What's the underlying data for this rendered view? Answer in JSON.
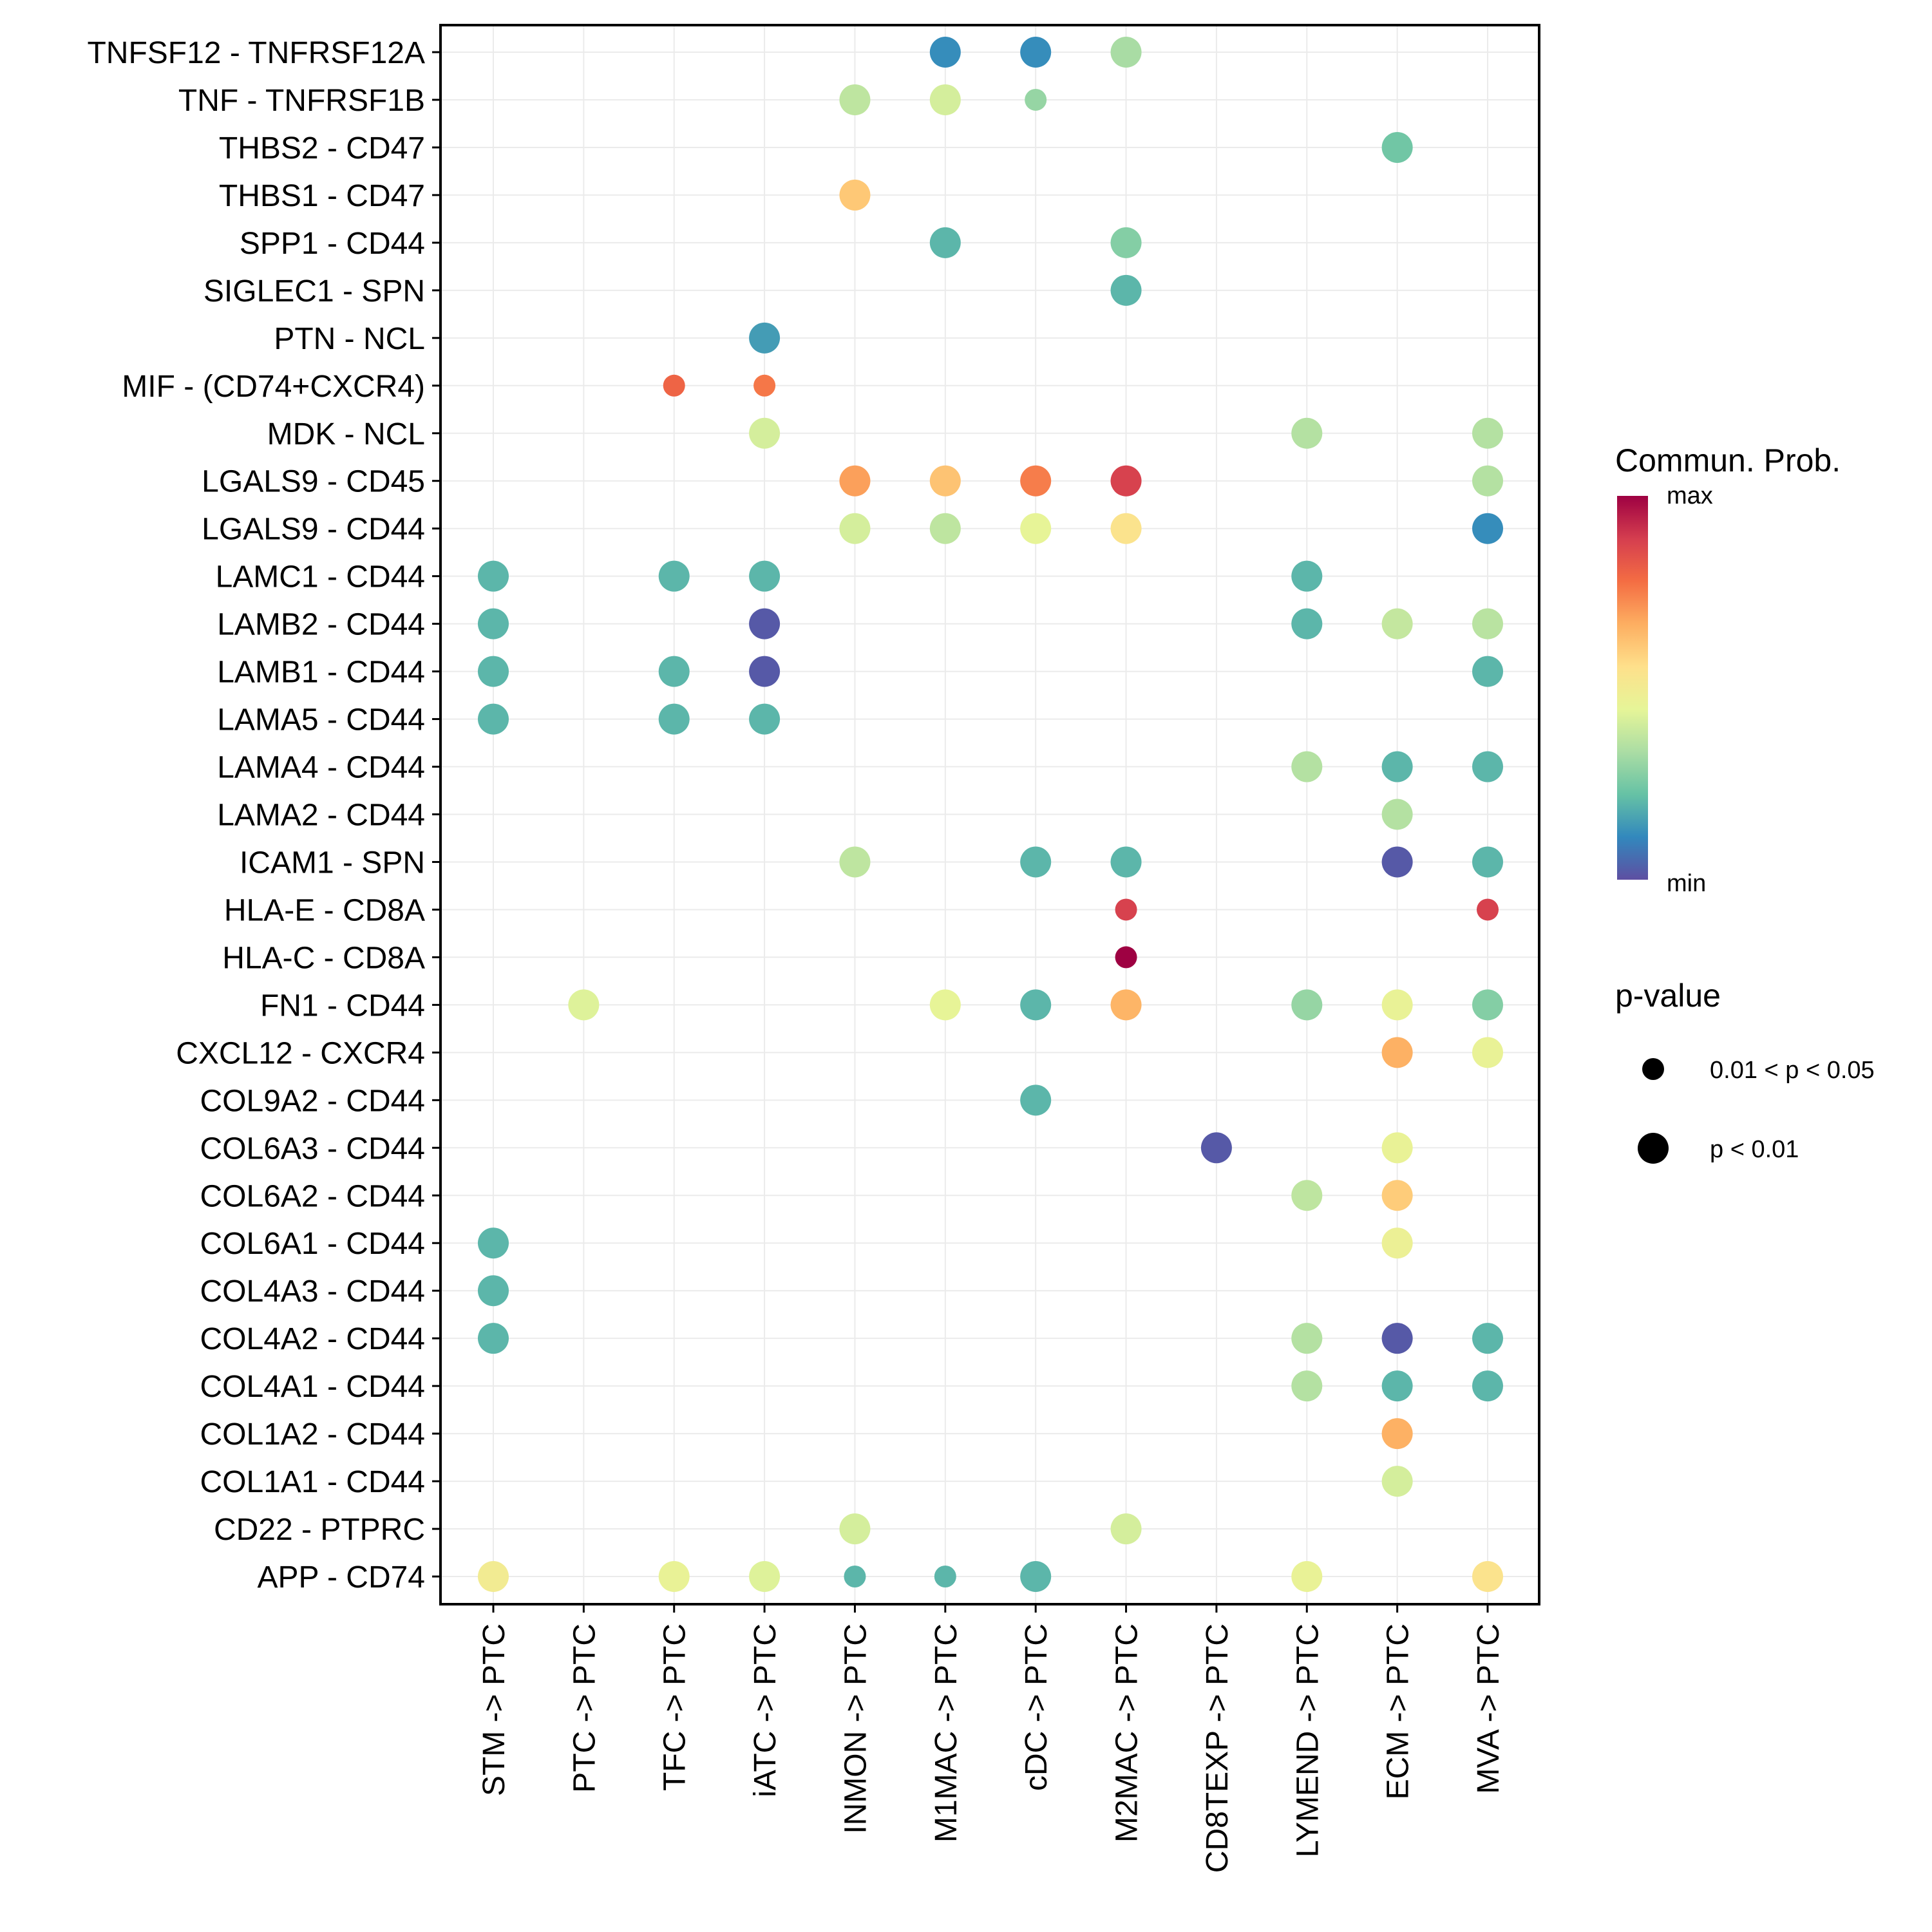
{
  "chart_data": {
    "type": "scatter",
    "subtype": "dot-plot",
    "title": "",
    "xlabel": "",
    "ylabel": "",
    "grid": true,
    "legend_position": "right",
    "x_categories": [
      "STM -> PTC",
      "PTC -> PTC",
      "TFC -> PTC",
      "iATC -> PTC",
      "INMON -> PTC",
      "M1MAC -> PTC",
      "cDC -> PTC",
      "M2MAC -> PTC",
      "CD8TEXP -> PTC",
      "LYMEND -> PTC",
      "ECM -> PTC",
      "MVA -> PTC"
    ],
    "y_categories": [
      "TNFSF12 - TNFRSF12A",
      "TNF - TNFRSF1B",
      "THBS2 - CD47",
      "THBS1 - CD47",
      "SPP1 - CD44",
      "SIGLEC1 - SPN",
      "PTN - NCL",
      "MIF - (CD74+CXCR4)",
      "MDK - NCL",
      "LGALS9 - CD45",
      "LGALS9 - CD44",
      "LAMC1 - CD44",
      "LAMB2 - CD44",
      "LAMB1 - CD44",
      "LAMA5 - CD44",
      "LAMA4 - CD44",
      "LAMA2 - CD44",
      "ICAM1 - SPN",
      "HLA-E - CD8A",
      "HLA-C - CD8A",
      "FN1 - CD44",
      "CXCL12 - CXCR4",
      "COL9A2 - CD44",
      "COL6A3 - CD44",
      "COL6A2 - CD44",
      "COL6A1 - CD44",
      "COL4A3 - CD44",
      "COL4A2 - CD44",
      "COL4A1 - CD44",
      "COL1A2 - CD44",
      "COL1A1 - CD44",
      "CD22 - PTPRC",
      "APP - CD74"
    ],
    "color_legend": {
      "title": "Commun. Prob.",
      "max_label": "max",
      "min_label": "min",
      "scale": [
        "#5E4FA2",
        "#3288BD",
        "#66C2A5",
        "#ABDDA4",
        "#E6F598",
        "#FEE08B",
        "#FDAE61",
        "#F46D43",
        "#D53E4F",
        "#9E0142"
      ]
    },
    "size_legend": {
      "title": "p-value",
      "items": [
        {
          "label": "0.01 < p < 0.05",
          "level": "small"
        },
        {
          "label": "p < 0.01",
          "level": "large"
        }
      ]
    },
    "points": [
      {
        "y": "TNFSF12 - TNFRSF12A",
        "x": "M1MAC -> PTC",
        "prob": 0.12,
        "p": "large"
      },
      {
        "y": "TNFSF12 - TNFRSF12A",
        "x": "cDC -> PTC",
        "prob": 0.12,
        "p": "large"
      },
      {
        "y": "TNFSF12 - TNFRSF12A",
        "x": "M2MAC -> PTC",
        "prob": 0.33,
        "p": "large"
      },
      {
        "y": "TNF - TNFRSF1B",
        "x": "INMON -> PTC",
        "prob": 0.37,
        "p": "large"
      },
      {
        "y": "TNF - TNFRSF1B",
        "x": "M1MAC -> PTC",
        "prob": 0.41,
        "p": "large"
      },
      {
        "y": "TNF - TNFRSF1B",
        "x": "cDC -> PTC",
        "prob": 0.3,
        "p": "small"
      },
      {
        "y": "THBS2 - CD47",
        "x": "ECM -> PTC",
        "prob": 0.24,
        "p": "large"
      },
      {
        "y": "THBS1 - CD47",
        "x": "INMON -> PTC",
        "prob": 0.61,
        "p": "large"
      },
      {
        "y": "SPP1 - CD44",
        "x": "M1MAC -> PTC",
        "prob": 0.2,
        "p": "large"
      },
      {
        "y": "SPP1 - CD44",
        "x": "M2MAC -> PTC",
        "prob": 0.27,
        "p": "large"
      },
      {
        "y": "SIGLEC1 - SPN",
        "x": "M2MAC -> PTC",
        "prob": 0.2,
        "p": "large"
      },
      {
        "y": "PTN - NCL",
        "x": "iATC -> PTC",
        "prob": 0.15,
        "p": "large"
      },
      {
        "y": "MIF - (CD74+CXCR4)",
        "x": "TFC -> PTC",
        "prob": 0.8,
        "p": "small"
      },
      {
        "y": "MIF - (CD74+CXCR4)",
        "x": "iATC -> PTC",
        "prob": 0.76,
        "p": "small"
      },
      {
        "y": "MDK - NCL",
        "x": "iATC -> PTC",
        "prob": 0.41,
        "p": "large"
      },
      {
        "y": "MDK - NCL",
        "x": "LYMEND -> PTC",
        "prob": 0.35,
        "p": "large"
      },
      {
        "y": "MDK - NCL",
        "x": "MVA -> PTC",
        "prob": 0.35,
        "p": "large"
      },
      {
        "y": "LGALS9 - CD45",
        "x": "INMON -> PTC",
        "prob": 0.69,
        "p": "large"
      },
      {
        "y": "LGALS9 - CD45",
        "x": "M1MAC -> PTC",
        "prob": 0.62,
        "p": "large"
      },
      {
        "y": "LGALS9 - CD45",
        "x": "cDC -> PTC",
        "prob": 0.75,
        "p": "large"
      },
      {
        "y": "LGALS9 - CD45",
        "x": "M2MAC -> PTC",
        "prob": 0.88,
        "p": "large"
      },
      {
        "y": "LGALS9 - CD45",
        "x": "MVA -> PTC",
        "prob": 0.35,
        "p": "large"
      },
      {
        "y": "LGALS9 - CD44",
        "x": "INMON -> PTC",
        "prob": 0.41,
        "p": "large"
      },
      {
        "y": "LGALS9 - CD44",
        "x": "M1MAC -> PTC",
        "prob": 0.37,
        "p": "large"
      },
      {
        "y": "LGALS9 - CD44",
        "x": "cDC -> PTC",
        "prob": 0.45,
        "p": "large"
      },
      {
        "y": "LGALS9 - CD44",
        "x": "M2MAC -> PTC",
        "prob": 0.54,
        "p": "large"
      },
      {
        "y": "LGALS9 - CD44",
        "x": "MVA -> PTC",
        "prob": 0.12,
        "p": "large"
      },
      {
        "y": "LAMC1 - CD44",
        "x": "STM -> PTC",
        "prob": 0.2,
        "p": "large"
      },
      {
        "y": "LAMC1 - CD44",
        "x": "TFC -> PTC",
        "prob": 0.2,
        "p": "large"
      },
      {
        "y": "LAMC1 - CD44",
        "x": "iATC -> PTC",
        "prob": 0.2,
        "p": "large"
      },
      {
        "y": "LAMC1 - CD44",
        "x": "LYMEND -> PTC",
        "prob": 0.2,
        "p": "large"
      },
      {
        "y": "LAMB2 - CD44",
        "x": "STM -> PTC",
        "prob": 0.2,
        "p": "large"
      },
      {
        "y": "LAMB2 - CD44",
        "x": "iATC -> PTC",
        "prob": 0.02,
        "p": "large"
      },
      {
        "y": "LAMB2 - CD44",
        "x": "LYMEND -> PTC",
        "prob": 0.2,
        "p": "large"
      },
      {
        "y": "LAMB2 - CD44",
        "x": "ECM -> PTC",
        "prob": 0.38,
        "p": "large"
      },
      {
        "y": "LAMB2 - CD44",
        "x": "MVA -> PTC",
        "prob": 0.36,
        "p": "large"
      },
      {
        "y": "LAMB1 - CD44",
        "x": "STM -> PTC",
        "prob": 0.2,
        "p": "large"
      },
      {
        "y": "LAMB1 - CD44",
        "x": "TFC -> PTC",
        "prob": 0.2,
        "p": "large"
      },
      {
        "y": "LAMB1 - CD44",
        "x": "iATC -> PTC",
        "prob": 0.02,
        "p": "large"
      },
      {
        "y": "LAMB1 - CD44",
        "x": "MVA -> PTC",
        "prob": 0.2,
        "p": "large"
      },
      {
        "y": "LAMA5 - CD44",
        "x": "STM -> PTC",
        "prob": 0.2,
        "p": "large"
      },
      {
        "y": "LAMA5 - CD44",
        "x": "TFC -> PTC",
        "prob": 0.2,
        "p": "large"
      },
      {
        "y": "LAMA5 - CD44",
        "x": "iATC -> PTC",
        "prob": 0.2,
        "p": "large"
      },
      {
        "y": "LAMA4 - CD44",
        "x": "LYMEND -> PTC",
        "prob": 0.35,
        "p": "large"
      },
      {
        "y": "LAMA4 - CD44",
        "x": "ECM -> PTC",
        "prob": 0.2,
        "p": "large"
      },
      {
        "y": "LAMA4 - CD44",
        "x": "MVA -> PTC",
        "prob": 0.2,
        "p": "large"
      },
      {
        "y": "LAMA2 - CD44",
        "x": "ECM -> PTC",
        "prob": 0.35,
        "p": "large"
      },
      {
        "y": "ICAM1 - SPN",
        "x": "INMON -> PTC",
        "prob": 0.37,
        "p": "large"
      },
      {
        "y": "ICAM1 - SPN",
        "x": "cDC -> PTC",
        "prob": 0.2,
        "p": "large"
      },
      {
        "y": "ICAM1 - SPN",
        "x": "M2MAC -> PTC",
        "prob": 0.2,
        "p": "large"
      },
      {
        "y": "ICAM1 - SPN",
        "x": "ECM -> PTC",
        "prob": 0.02,
        "p": "large"
      },
      {
        "y": "ICAM1 - SPN",
        "x": "MVA -> PTC",
        "prob": 0.2,
        "p": "large"
      },
      {
        "y": "HLA-E - CD8A",
        "x": "M2MAC -> PTC",
        "prob": 0.88,
        "p": "small"
      },
      {
        "y": "HLA-E - CD8A",
        "x": "MVA -> PTC",
        "prob": 0.88,
        "p": "small"
      },
      {
        "y": "HLA-C - CD8A",
        "x": "M2MAC -> PTC",
        "prob": 1.0,
        "p": "small"
      },
      {
        "y": "FN1 - CD44",
        "x": "PTC -> PTC",
        "prob": 0.43,
        "p": "large"
      },
      {
        "y": "FN1 - CD44",
        "x": "M1MAC -> PTC",
        "prob": 0.45,
        "p": "large"
      },
      {
        "y": "FN1 - CD44",
        "x": "cDC -> PTC",
        "prob": 0.2,
        "p": "large"
      },
      {
        "y": "FN1 - CD44",
        "x": "M2MAC -> PTC",
        "prob": 0.65,
        "p": "large"
      },
      {
        "y": "FN1 - CD44",
        "x": "LYMEND -> PTC",
        "prob": 0.3,
        "p": "large"
      },
      {
        "y": "FN1 - CD44",
        "x": "ECM -> PTC",
        "prob": 0.46,
        "p": "large"
      },
      {
        "y": "FN1 - CD44",
        "x": "MVA -> PTC",
        "prob": 0.27,
        "p": "large"
      },
      {
        "y": "CXCL12 - CXCR4",
        "x": "ECM -> PTC",
        "prob": 0.66,
        "p": "large"
      },
      {
        "y": "CXCL12 - CXCR4",
        "x": "MVA -> PTC",
        "prob": 0.46,
        "p": "large"
      },
      {
        "y": "COL9A2 - CD44",
        "x": "cDC -> PTC",
        "prob": 0.2,
        "p": "large"
      },
      {
        "y": "COL6A3 - CD44",
        "x": "CD8TEXP -> PTC",
        "prob": 0.02,
        "p": "large"
      },
      {
        "y": "COL6A3 - CD44",
        "x": "ECM -> PTC",
        "prob": 0.46,
        "p": "large"
      },
      {
        "y": "COL6A2 - CD44",
        "x": "LYMEND -> PTC",
        "prob": 0.37,
        "p": "large"
      },
      {
        "y": "COL6A2 - CD44",
        "x": "ECM -> PTC",
        "prob": 0.6,
        "p": "large"
      },
      {
        "y": "COL6A1 - CD44",
        "x": "STM -> PTC",
        "prob": 0.2,
        "p": "large"
      },
      {
        "y": "COL6A1 - CD44",
        "x": "ECM -> PTC",
        "prob": 0.47,
        "p": "large"
      },
      {
        "y": "COL4A3 - CD44",
        "x": "STM -> PTC",
        "prob": 0.2,
        "p": "large"
      },
      {
        "y": "COL4A2 - CD44",
        "x": "STM -> PTC",
        "prob": 0.2,
        "p": "large"
      },
      {
        "y": "COL4A2 - CD44",
        "x": "LYMEND -> PTC",
        "prob": 0.35,
        "p": "large"
      },
      {
        "y": "COL4A2 - CD44",
        "x": "ECM -> PTC",
        "prob": 0.02,
        "p": "large"
      },
      {
        "y": "COL4A2 - CD44",
        "x": "MVA -> PTC",
        "prob": 0.2,
        "p": "large"
      },
      {
        "y": "COL4A1 - CD44",
        "x": "LYMEND -> PTC",
        "prob": 0.35,
        "p": "large"
      },
      {
        "y": "COL4A1 - CD44",
        "x": "ECM -> PTC",
        "prob": 0.2,
        "p": "large"
      },
      {
        "y": "COL4A1 - CD44",
        "x": "MVA -> PTC",
        "prob": 0.2,
        "p": "large"
      },
      {
        "y": "COL1A2 - CD44",
        "x": "ECM -> PTC",
        "prob": 0.66,
        "p": "large"
      },
      {
        "y": "COL1A1 - CD44",
        "x": "ECM -> PTC",
        "prob": 0.41,
        "p": "large"
      },
      {
        "y": "CD22 - PTPRC",
        "x": "INMON -> PTC",
        "prob": 0.41,
        "p": "large"
      },
      {
        "y": "CD22 - PTPRC",
        "x": "M2MAC -> PTC",
        "prob": 0.41,
        "p": "large"
      },
      {
        "y": "APP - CD74",
        "x": "STM -> PTC",
        "prob": 0.5,
        "p": "large"
      },
      {
        "y": "APP - CD74",
        "x": "TFC -> PTC",
        "prob": 0.46,
        "p": "large"
      },
      {
        "y": "APP - CD74",
        "x": "iATC -> PTC",
        "prob": 0.43,
        "p": "large"
      },
      {
        "y": "APP - CD74",
        "x": "INMON -> PTC",
        "prob": 0.2,
        "p": "small"
      },
      {
        "y": "APP - CD74",
        "x": "M1MAC -> PTC",
        "prob": 0.2,
        "p": "small"
      },
      {
        "y": "APP - CD74",
        "x": "cDC -> PTC",
        "prob": 0.2,
        "p": "large"
      },
      {
        "y": "APP - CD74",
        "x": "LYMEND -> PTC",
        "prob": 0.46,
        "p": "large"
      },
      {
        "y": "APP - CD74",
        "x": "MVA -> PTC",
        "prob": 0.54,
        "p": "large"
      }
    ]
  }
}
